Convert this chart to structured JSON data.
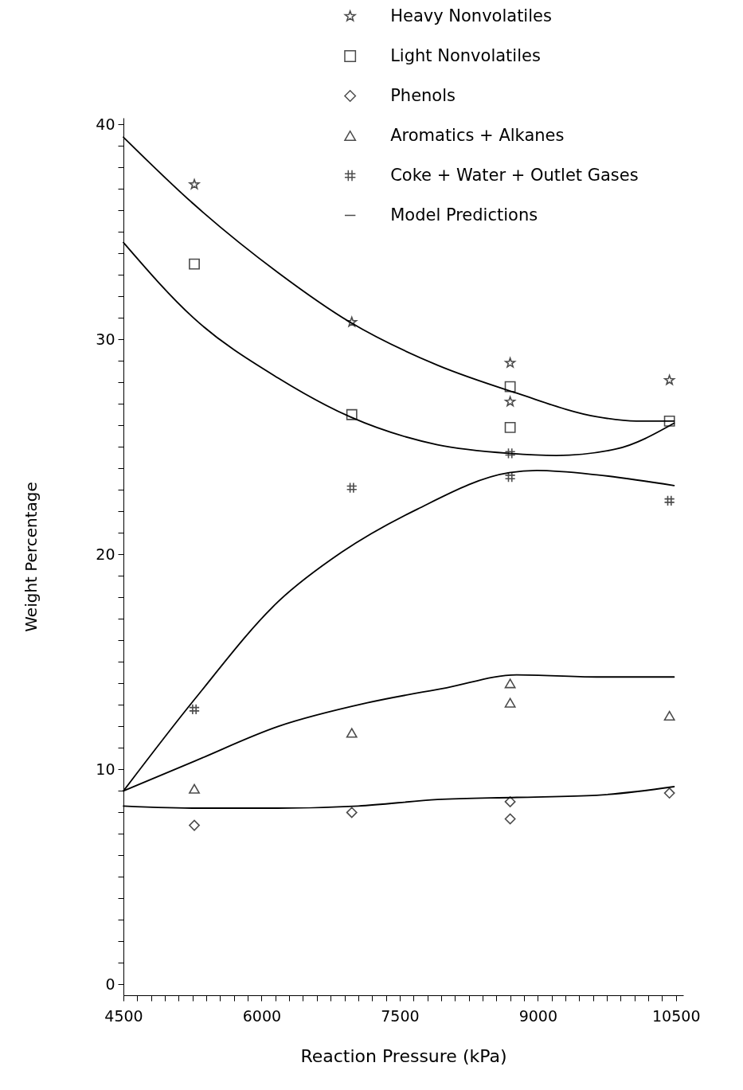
{
  "chart_data": {
    "type": "scatter",
    "xlabel": "Reaction Pressure (kPa)",
    "ylabel": "Weight Percentage",
    "xlim": [
      4500,
      10580
    ],
    "ylim": [
      -0.5,
      40.3
    ],
    "xticks": [
      4500,
      {
        "value": 4650,
        "label": null
      },
      {
        "value": 4800,
        "label": null
      },
      {
        "value": 4950,
        "label": null
      },
      {
        "value": 5100,
        "label": null
      },
      {
        "value": 5250,
        "label": null
      },
      {
        "value": 5400,
        "label": null
      },
      {
        "value": 5550,
        "label": null
      },
      {
        "value": 5700,
        "label": null
      },
      {
        "value": 5850,
        "label": null
      },
      6000,
      {
        "value": 6150,
        "label": null
      },
      {
        "value": 6300,
        "label": null
      },
      {
        "value": 6450,
        "label": null
      },
      {
        "value": 6600,
        "label": null
      },
      {
        "value": 6750,
        "label": null
      },
      {
        "value": 6900,
        "label": null
      },
      {
        "value": 7050,
        "label": null
      },
      {
        "value": 7200,
        "label": null
      },
      {
        "value": 7350,
        "label": null
      },
      7500,
      {
        "value": 7650,
        "label": null
      },
      {
        "value": 7800,
        "label": null
      },
      {
        "value": 7950,
        "label": null
      },
      {
        "value": 8100,
        "label": null
      },
      {
        "value": 8250,
        "label": null
      },
      {
        "value": 8400,
        "label": null
      },
      {
        "value": 8550,
        "label": null
      },
      {
        "value": 8700,
        "label": null
      },
      {
        "value": 8850,
        "label": null
      },
      9000,
      {
        "value": 9150,
        "label": null
      },
      {
        "value": 9300,
        "label": null
      },
      {
        "value": 9450,
        "label": null
      },
      {
        "value": 9600,
        "label": null
      },
      {
        "value": 9750,
        "label": null
      },
      {
        "value": 9900,
        "label": null
      },
      {
        "value": 10050,
        "label": null
      },
      {
        "value": 10200,
        "label": null
      },
      {
        "value": 10350,
        "label": null
      },
      10500
    ],
    "yticks": [
      0,
      {
        "value": 1,
        "label": null
      },
      {
        "value": 2,
        "label": null
      },
      {
        "value": 3,
        "label": null
      },
      {
        "value": 4,
        "label": null
      },
      {
        "value": 5,
        "label": null
      },
      {
        "value": 6,
        "label": null
      },
      {
        "value": 7,
        "label": null
      },
      {
        "value": 8,
        "label": null
      },
      {
        "value": 9,
        "label": null
      },
      10,
      {
        "value": 11,
        "label": null
      },
      {
        "value": 12,
        "label": null
      },
      {
        "value": 13,
        "label": null
      },
      {
        "value": 14,
        "label": null
      },
      {
        "value": 15,
        "label": null
      },
      {
        "value": 16,
        "label": null
      },
      {
        "value": 17,
        "label": null
      },
      {
        "value": 18,
        "label": null
      },
      {
        "value": 19,
        "label": null
      },
      20,
      {
        "value": 21,
        "label": null
      },
      {
        "value": 22,
        "label": null
      },
      {
        "value": 23,
        "label": null
      },
      {
        "value": 24,
        "label": null
      },
      {
        "value": 25,
        "label": null
      },
      {
        "value": 26,
        "label": null
      },
      {
        "value": 27,
        "label": null
      },
      {
        "value": 28,
        "label": null
      },
      {
        "value": 29,
        "label": null
      },
      30,
      {
        "value": 31,
        "label": null
      },
      {
        "value": 32,
        "label": null
      },
      {
        "value": 33,
        "label": null
      },
      {
        "value": 34,
        "label": null
      },
      {
        "value": 35,
        "label": null
      },
      {
        "value": 36,
        "label": null
      },
      {
        "value": 37,
        "label": null
      },
      {
        "value": 38,
        "label": null
      },
      {
        "value": 39,
        "label": null
      },
      40
    ],
    "legend": "top right",
    "series": [
      {
        "name": "Heavy Nonvolatiles",
        "color": "#000000",
        "marker": "star",
        "x": [
          5270,
          6980,
          8700,
          8700,
          10430
        ],
        "values": [
          37.2,
          30.8,
          28.9,
          27.1,
          28.1
        ]
      },
      {
        "name": "Light Nonvolatiles",
        "color": "#000000",
        "marker": "square",
        "x": [
          5270,
          6980,
          8700,
          8700,
          10430
        ],
        "values": [
          33.5,
          26.5,
          27.8,
          25.9,
          26.2
        ]
      },
      {
        "name": "Phenols",
        "color": "#000000",
        "marker": "diamond",
        "x": [
          5270,
          6980,
          8700,
          8700,
          10430
        ],
        "values": [
          7.4,
          8.0,
          8.5,
          7.7,
          8.9
        ]
      },
      {
        "name": "Aromatics + Alkanes",
        "color": "#000000",
        "marker": "triangle",
        "x": [
          5270,
          6980,
          8700,
          8700,
          10430
        ],
        "values": [
          9.1,
          11.7,
          14.0,
          13.1,
          12.5
        ]
      },
      {
        "name": "Coke + Water + Outlet Gases",
        "color": "#000000",
        "marker": "cross",
        "x": [
          5270,
          6980,
          8700,
          8700,
          10430
        ],
        "values": [
          12.8,
          23.1,
          24.7,
          23.6,
          22.5
        ]
      },
      {
        "name": "Model Predictions",
        "type": "line",
        "color": "#000000",
        "marker": "none",
        "line_style": "solid",
        "x": [
          4500,
          5260,
          6180,
          6960,
          7910,
          8770,
          9640,
          10070,
          10480
        ],
        "values": [
          39.4,
          36.3,
          33.1,
          30.8,
          28.8,
          27.5,
          26.4,
          26.2,
          26.2
        ]
      },
      {
        "type": "line",
        "color": "#000000",
        "marker": "none",
        "line_style": "solid",
        "x": [
          4500,
          5260,
          6180,
          6960,
          7910,
          8690,
          9200,
          9850,
          10480
        ],
        "values": [
          34.5,
          31.0,
          28.2,
          26.4,
          25.1,
          24.7,
          24.6,
          24.9,
          26.1
        ]
      },
      {
        "type": "line",
        "color": "#000000",
        "marker": "none",
        "line_style": "solid",
        "x": [
          4500,
          5280,
          6180,
          6870,
          7690,
          8690,
          8990,
          9640,
          10480
        ],
        "values": [
          9.0,
          13.3,
          17.8,
          20.1,
          22.1,
          23.8,
          23.9,
          23.7,
          23.2
        ]
      },
      {
        "type": "line",
        "color": "#000000",
        "marker": "none",
        "line_style": "solid",
        "x": [
          4500,
          5280,
          6180,
          7150,
          8010,
          8770,
          9640,
          10480
        ],
        "values": [
          9.0,
          10.4,
          12.0,
          13.1,
          13.8,
          14.4,
          14.3,
          14.3
        ]
      },
      {
        "type": "line",
        "color": "#000000",
        "marker": "none",
        "line_style": "solid",
        "x": [
          4500,
          5320,
          6180,
          7050,
          7910,
          8770,
          9640,
          10480
        ],
        "values": [
          8.3,
          8.2,
          8.2,
          8.3,
          8.6,
          8.7,
          8.8,
          9.2
        ]
      }
    ]
  }
}
